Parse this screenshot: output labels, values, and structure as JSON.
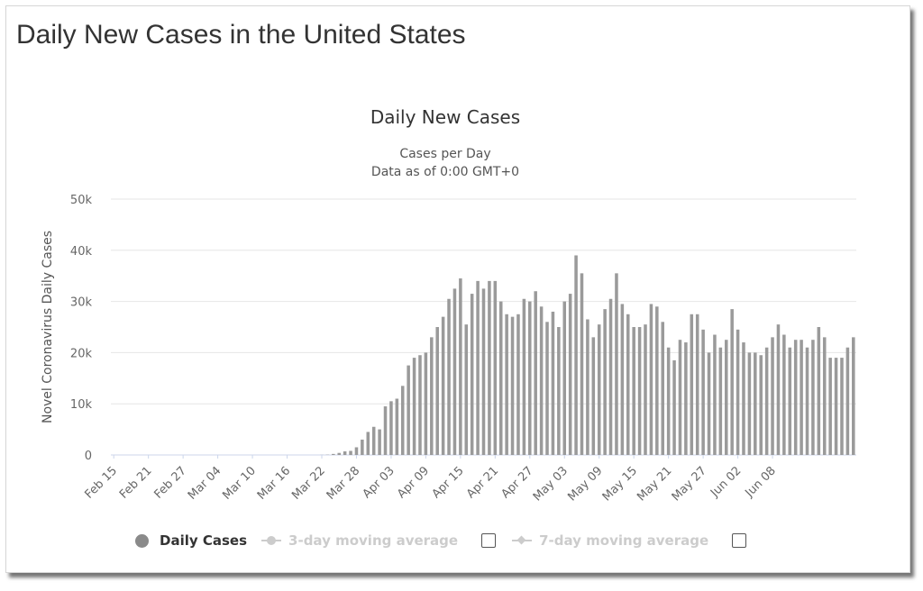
{
  "page": {
    "title": "Daily New Cases in the United States"
  },
  "legend": {
    "daily_label": "Daily Cases",
    "avg3_label": "3-day moving average",
    "avg7_label": "7-day moving average"
  },
  "chart_data": {
    "type": "bar",
    "title": "Daily New Cases",
    "subtitle": [
      "Cases per Day",
      "Data as of 0:00 GMT+0"
    ],
    "xlabel": "",
    "ylabel": "Novel Coronavirus Daily Cases",
    "ylim": [
      0,
      50000
    ],
    "yticks": [
      0,
      10000,
      20000,
      30000,
      40000,
      50000
    ],
    "ytick_labels": [
      "0",
      "10k",
      "20k",
      "30k",
      "40k",
      "50k"
    ],
    "grid": true,
    "bar_color": "#9a9a9a",
    "x_start": "2020-02-15",
    "xtick_labels": [
      "Feb 15",
      "Feb 21",
      "Feb 27",
      "Mar 04",
      "Mar 10",
      "Mar 16",
      "Mar 22",
      "Mar 28",
      "Apr 03",
      "Apr 09",
      "Apr 15",
      "Apr 21",
      "Apr 27",
      "May 03",
      "May 09",
      "May 15",
      "May 21",
      "May 27",
      "Jun 02",
      "Jun 08"
    ],
    "xtick_step": 6,
    "series": [
      {
        "name": "Daily Cases",
        "values": [
          0,
          0,
          0,
          0,
          0,
          0,
          0,
          0,
          0,
          0,
          0,
          0,
          0,
          0,
          0,
          0,
          0,
          0,
          0,
          0,
          0,
          0,
          0,
          0,
          0,
          0,
          0,
          0,
          0,
          0,
          0,
          0,
          0,
          0,
          0,
          0,
          20,
          50,
          200,
          400,
          700,
          800,
          1500,
          3000,
          4500,
          5500,
          5000,
          9500,
          10500,
          11000,
          13500,
          17500,
          19000,
          19500,
          20000,
          23000,
          25000,
          27000,
          30500,
          32500,
          34500,
          25500,
          31500,
          34000,
          32500,
          34000,
          34000,
          30000,
          27500,
          27000,
          27500,
          30500,
          30000,
          32000,
          29000,
          26000,
          28000,
          25000,
          30000,
          31500,
          39000,
          35500,
          26500,
          23000,
          25500,
          28500,
          30500,
          35500,
          29500,
          27500,
          25000,
          25000,
          25500,
          29500,
          29000,
          26000,
          21000,
          18500,
          22500,
          22000,
          27500,
          27500,
          24500,
          20000,
          23500,
          21000,
          22500,
          28500,
          24500,
          22000,
          20000,
          20000,
          19500,
          21000,
          23000,
          25500,
          23500,
          21000,
          22500,
          22500,
          21000,
          22500,
          25000,
          23000,
          19000,
          19000,
          19000,
          21000,
          23000
        ]
      }
    ]
  }
}
